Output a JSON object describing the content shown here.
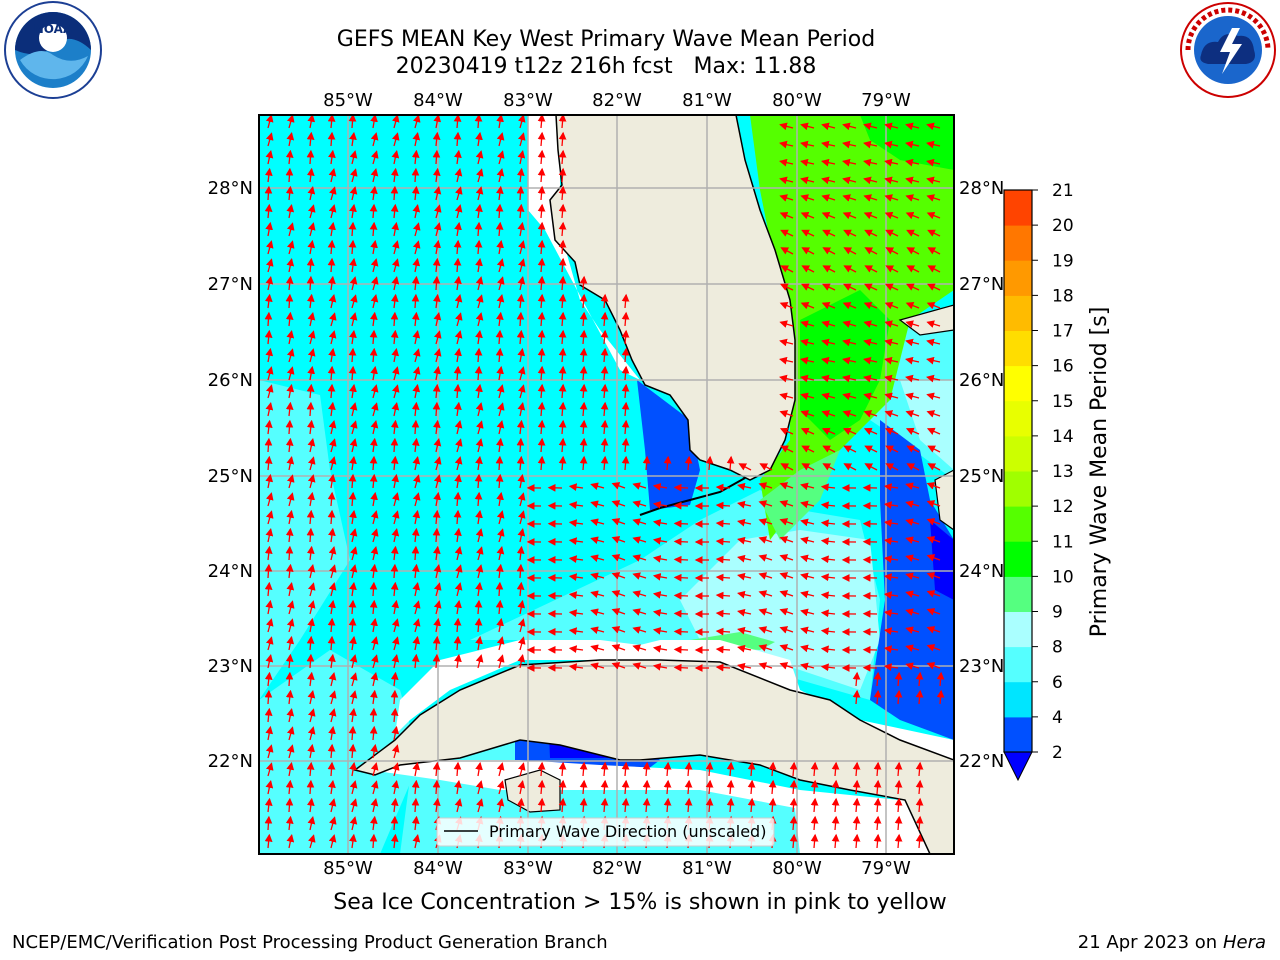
{
  "title": {
    "line1": "GEFS MEAN Key West Primary Wave Mean Period",
    "line2": "20230419 t12z 216h fcst   Max: 11.88"
  },
  "map": {
    "lon_labels": [
      "85°W",
      "84°W",
      "83°W",
      "82°W",
      "81°W",
      "80°W",
      "79°W"
    ],
    "lat_labels": [
      "28°N",
      "27°N",
      "26°N",
      "25°N",
      "24°N",
      "23°N",
      "22°N"
    ],
    "legend_label": "Primary Wave Direction (unscaled)",
    "land_color": "#eeecdd",
    "arrow_color": "#ff0000"
  },
  "colorbar": {
    "label": "Primary Wave Mean Period [s]",
    "ticks": [
      "2",
      "4",
      "6",
      "8",
      "9",
      "10",
      "11",
      "12",
      "13",
      "14",
      "15",
      "16",
      "17",
      "18",
      "19",
      "20",
      "21"
    ],
    "colors": [
      "#0050ff",
      "#00e5ff",
      "#55ffff",
      "#aaffff",
      "#55ff80",
      "#00ff00",
      "#55ff00",
      "#a0ff00",
      "#ccff00",
      "#e8ff00",
      "#ffff00",
      "#ffdd00",
      "#ffbb00",
      "#ff9900",
      "#ff7700",
      "#ff4400",
      "#ff1a00"
    ],
    "under_color": "#0000ff"
  },
  "notice": "Sea Ice Concentration > 15% is shown in pink to yellow",
  "footer": {
    "left": "NCEP/EMC/Verification Post Processing Product Generation Branch",
    "date": "21 Apr 2023 on ",
    "machine": "Hera"
  },
  "logos": {
    "noaa_text": "NOAA",
    "nws_text": "NATIONAL WEATHER SERVICE"
  }
}
